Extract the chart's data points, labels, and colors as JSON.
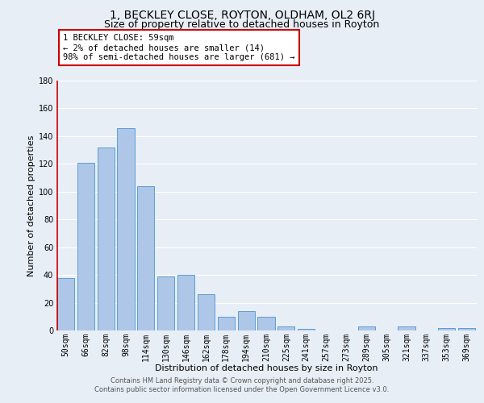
{
  "title": "1, BECKLEY CLOSE, ROYTON, OLDHAM, OL2 6RJ",
  "subtitle": "Size of property relative to detached houses in Royton",
  "xlabel": "Distribution of detached houses by size in Royton",
  "ylabel": "Number of detached properties",
  "bar_labels": [
    "50sqm",
    "66sqm",
    "82sqm",
    "98sqm",
    "114sqm",
    "130sqm",
    "146sqm",
    "162sqm",
    "178sqm",
    "194sqm",
    "210sqm",
    "225sqm",
    "241sqm",
    "257sqm",
    "273sqm",
    "289sqm",
    "305sqm",
    "321sqm",
    "337sqm",
    "353sqm",
    "369sqm"
  ],
  "bar_values": [
    38,
    121,
    132,
    146,
    104,
    39,
    40,
    26,
    10,
    14,
    10,
    3,
    1,
    0,
    0,
    3,
    0,
    3,
    0,
    2,
    2
  ],
  "bar_color": "#aec6e8",
  "bar_edge_color": "#5a9fd4",
  "background_color": "#e8eef5",
  "grid_color": "#d0d8e8",
  "ylim": [
    0,
    180
  ],
  "yticks": [
    0,
    20,
    40,
    60,
    80,
    100,
    120,
    140,
    160,
    180
  ],
  "annotation_title": "1 BECKLEY CLOSE: 59sqm",
  "annotation_line2": "← 2% of detached houses are smaller (14)",
  "annotation_line3": "98% of semi-detached houses are larger (681) →",
  "annotation_box_color": "#ffffff",
  "annotation_box_edge": "#cc0000",
  "footer_line1": "Contains HM Land Registry data © Crown copyright and database right 2025.",
  "footer_line2": "Contains public sector information licensed under the Open Government Licence v3.0.",
  "title_fontsize": 10,
  "subtitle_fontsize": 9,
  "axis_label_fontsize": 8,
  "tick_fontsize": 7,
  "annotation_fontsize": 7.5,
  "footer_fontsize": 6
}
